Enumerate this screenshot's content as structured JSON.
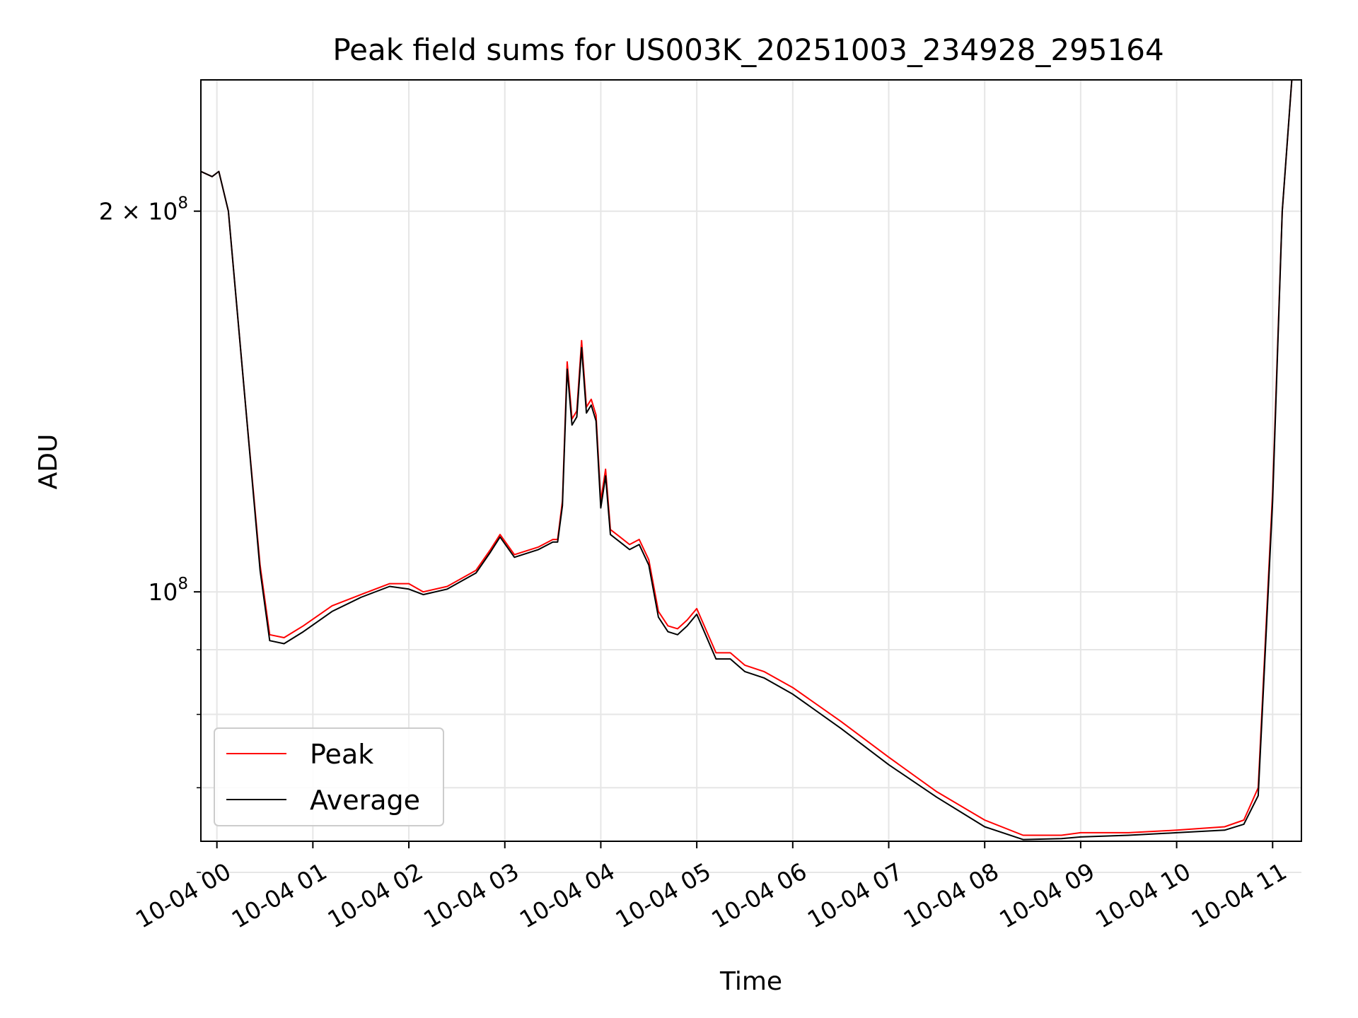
{
  "chart_data": {
    "type": "line",
    "title": "Peak field sums for US003K_20251003_234928_295164",
    "xlabel": "Time",
    "ylabel": "ADU",
    "yscale": "log",
    "ylim": [
      63500000,
      254000000
    ],
    "xlim": [
      -0.167,
      11.3
    ],
    "x_unit": "hours after 2025-10-04 00:00",
    "grid": true,
    "legend_position": "lower-left",
    "x_ticks": [
      {
        "value": 0,
        "label": "10-04 00"
      },
      {
        "value": 1,
        "label": "10-04 01"
      },
      {
        "value": 2,
        "label": "10-04 02"
      },
      {
        "value": 3,
        "label": "10-04 03"
      },
      {
        "value": 4,
        "label": "10-04 04"
      },
      {
        "value": 5,
        "label": "10-04 05"
      },
      {
        "value": 6,
        "label": "10-04 06"
      },
      {
        "value": 7,
        "label": "10-04 07"
      },
      {
        "value": 8,
        "label": "10-04 08"
      },
      {
        "value": 9,
        "label": "10-04 09"
      },
      {
        "value": 10,
        "label": "10-04 10"
      },
      {
        "value": 11,
        "label": "10-04 11"
      }
    ],
    "y_major_ticks": [
      {
        "value": 100000000,
        "base": "10",
        "exp": "8"
      },
      {
        "value": 200000000,
        "base": "2 × 10",
        "exp": "8"
      }
    ],
    "y_minor_ticks": [
      60000000,
      70000000,
      80000000,
      90000000
    ],
    "series": [
      {
        "name": "Peak",
        "color": "#ff0000",
        "x": [
          -0.167,
          -0.05,
          0.02,
          0.12,
          0.3,
          0.45,
          0.55,
          0.7,
          0.9,
          1.2,
          1.5,
          1.8,
          2.0,
          2.15,
          2.4,
          2.7,
          2.85,
          2.95,
          3.1,
          3.35,
          3.5,
          3.55,
          3.6,
          3.65,
          3.7,
          3.75,
          3.8,
          3.85,
          3.9,
          3.95,
          4.0,
          4.05,
          4.1,
          4.2,
          4.3,
          4.4,
          4.5,
          4.6,
          4.7,
          4.8,
          4.9,
          5.0,
          5.2,
          5.35,
          5.5,
          5.7,
          6.0,
          6.5,
          7.0,
          7.5,
          8.0,
          8.4,
          8.8,
          9.0,
          9.5,
          10.0,
          10.5,
          10.7,
          10.85,
          11.0,
          11.1,
          11.2,
          11.3
        ],
        "values": [
          215000000,
          213000000,
          215000000,
          200000000,
          140000000,
          105000000,
          92500000,
          92000000,
          94000000,
          97500000,
          99500000,
          101500000,
          101500000,
          100000000,
          101000000,
          104000000,
          108000000,
          111000000,
          107000000,
          108500000,
          110000000,
          110000000,
          118000000,
          152000000,
          137000000,
          139000000,
          158000000,
          140000000,
          142000000,
          138000000,
          118000000,
          125000000,
          112000000,
          110500000,
          109000000,
          110000000,
          106000000,
          96500000,
          94000000,
          93500000,
          95000000,
          97000000,
          89500000,
          89500000,
          87500000,
          86500000,
          84000000,
          79000000,
          74000000,
          69500000,
          66000000,
          64200000,
          64200000,
          64500000,
          64500000,
          64800000,
          65200000,
          66000000,
          70000000,
          120000000,
          200000000,
          254000000,
          254000000
        ]
      },
      {
        "name": "Average",
        "color": "#000000",
        "x": [
          -0.167,
          -0.05,
          0.02,
          0.12,
          0.3,
          0.45,
          0.55,
          0.7,
          0.9,
          1.2,
          1.5,
          1.8,
          2.0,
          2.15,
          2.4,
          2.7,
          2.85,
          2.95,
          3.1,
          3.35,
          3.5,
          3.55,
          3.6,
          3.65,
          3.7,
          3.75,
          3.8,
          3.85,
          3.9,
          3.95,
          4.0,
          4.05,
          4.1,
          4.2,
          4.3,
          4.4,
          4.5,
          4.6,
          4.7,
          4.8,
          4.9,
          5.0,
          5.2,
          5.35,
          5.5,
          5.7,
          6.0,
          6.5,
          7.0,
          7.5,
          8.0,
          8.4,
          8.8,
          9.0,
          9.5,
          10.0,
          10.5,
          10.7,
          10.85,
          11.0,
          11.1,
          11.2,
          11.3
        ],
        "values": [
          215000000,
          213000000,
          215000000,
          200000000,
          140000000,
          104000000,
          91500000,
          91000000,
          93000000,
          96500000,
          99000000,
          101000000,
          100500000,
          99500000,
          100500000,
          103500000,
          107500000,
          110500000,
          106500000,
          108000000,
          109500000,
          109500000,
          117000000,
          150000000,
          135500000,
          137500000,
          156000000,
          138500000,
          140500000,
          136500000,
          116500000,
          123500000,
          111000000,
          109500000,
          108000000,
          109000000,
          105000000,
          95500000,
          93000000,
          92500000,
          94000000,
          96000000,
          88500000,
          88500000,
          86500000,
          85500000,
          83000000,
          78000000,
          73000000,
          68800000,
          65200000,
          63700000,
          63800000,
          64000000,
          64200000,
          64500000,
          64800000,
          65500000,
          69000000,
          118000000,
          200000000,
          254000000,
          254000000
        ]
      }
    ]
  }
}
